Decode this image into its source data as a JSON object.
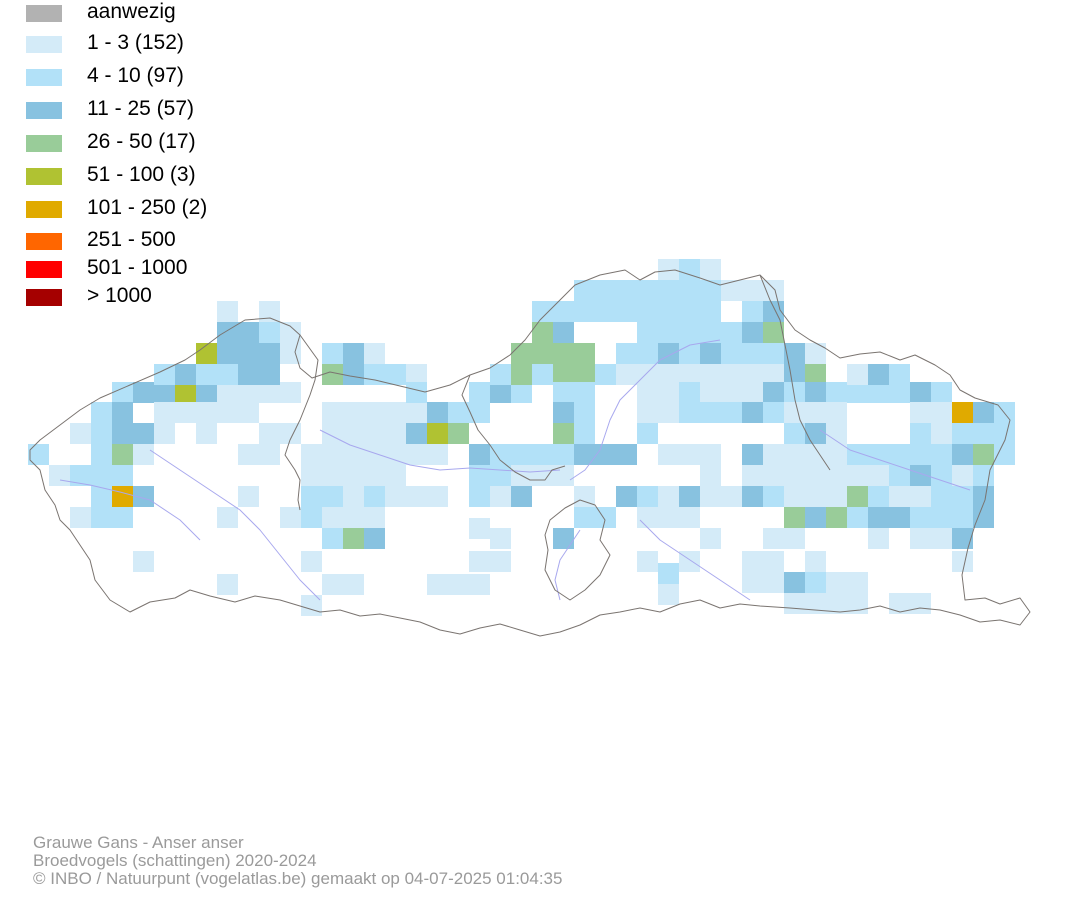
{
  "legend": [
    {
      "label": "aanwezig",
      "color": "#b2b2b2"
    },
    {
      "label": "1 - 3 (152)",
      "color": "#d4ebf8"
    },
    {
      "label": "4 - 10 (97)",
      "color": "#b2e1f8"
    },
    {
      "label": "11 - 25 (57)",
      "color": "#88c2e0"
    },
    {
      "label": "26 - 50 (17)",
      "color": "#99cc99"
    },
    {
      "label": "51 - 100 (3)",
      "color": "#b0c232"
    },
    {
      "label": "101 - 250 (2)",
      "color": "#e0aa00"
    },
    {
      "label": "251 - 500",
      "color": "#ff6600"
    },
    {
      "label": "501 - 1000",
      "color": "#ff0000"
    },
    {
      "label": "> 1000",
      "color": "#a50000"
    }
  ],
  "colors": {
    "border": "#7a7470",
    "river": "#a8a8ee"
  },
  "credits": {
    "line1": "Grauwe Gans - Anser anser",
    "line2": "Broedvogels (schattingen) 2020-2024",
    "line3": "© INBO / Natuurpunt (vogelatlas.be) gemaakt op 04-07-2025 01:04:35"
  }
}
